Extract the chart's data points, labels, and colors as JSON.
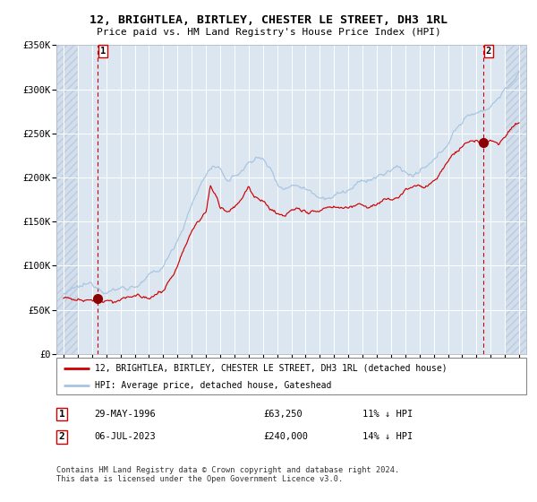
{
  "title": "12, BRIGHTLEA, BIRTLEY, CHESTER LE STREET, DH3 1RL",
  "subtitle": "Price paid vs. HM Land Registry's House Price Index (HPI)",
  "bg_color": "#dce6f1",
  "grid_color": "#ffffff",
  "hpi_color": "#a8c4e0",
  "price_color": "#cc0000",
  "dashed_line_color": "#cc0000",
  "marker_color": "#8b0000",
  "ylim": [
    0,
    350000
  ],
  "yticks": [
    0,
    50000,
    100000,
    150000,
    200000,
    250000,
    300000,
    350000
  ],
  "ytick_labels": [
    "£0",
    "£50K",
    "£100K",
    "£150K",
    "£200K",
    "£250K",
    "£300K",
    "£350K"
  ],
  "xlim_start": 1993.5,
  "xlim_end": 2026.5,
  "xticks": [
    1994,
    1995,
    1996,
    1997,
    1998,
    1999,
    2000,
    2001,
    2002,
    2003,
    2004,
    2005,
    2006,
    2007,
    2008,
    2009,
    2010,
    2011,
    2012,
    2013,
    2014,
    2015,
    2016,
    2017,
    2018,
    2019,
    2020,
    2021,
    2022,
    2023,
    2024,
    2025,
    2026
  ],
  "ann1_x": 1996.42,
  "ann1_y": 63250,
  "ann2_x": 2023.51,
  "ann2_y": 240000,
  "legend_label1": "12, BRIGHTLEA, BIRTLEY, CHESTER LE STREET, DH3 1RL (detached house)",
  "legend_label2": "HPI: Average price, detached house, Gateshead",
  "footer": "Contains HM Land Registry data © Crown copyright and database right 2024.\nThis data is licensed under the Open Government Licence v3.0.",
  "table_row1": [
    "1",
    "29-MAY-1996",
    "£63,250",
    "11% ↓ HPI"
  ],
  "table_row2": [
    "2",
    "06-JUL-2023",
    "£240,000",
    "14% ↓ HPI"
  ]
}
